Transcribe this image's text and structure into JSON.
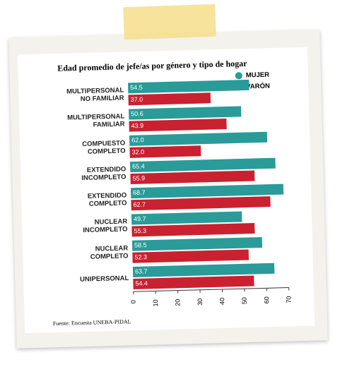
{
  "chart_data": {
    "type": "bar",
    "orientation": "horizontal",
    "title": "Edad promedio de jefe/as por género y tipo de hogar",
    "categories": [
      "MULTIPERSONAL\nNO FAMILIAR",
      "MULTIPERSONAL\nFAMILIAR",
      "COMPUESTO\nCOMPLETO",
      "EXTENDIDO\nINCOMPLETO",
      "EXTENDIDO\nCOMPLETO",
      "NUCLEAR\nINCOMPLETO",
      "NUCLEAR\nCOMPLETO",
      "UNIPERSONAL"
    ],
    "series": [
      {
        "name": "MUJER",
        "color": "#2a9b98",
        "values": [
          54.5,
          50.6,
          62.0,
          65.4,
          68.7,
          49.7,
          58.5,
          63.7
        ],
        "value_labels": [
          "54.5",
          "50.6",
          "62.0",
          "65.4",
          "68.7",
          "49.7",
          "58.5",
          "63.7"
        ]
      },
      {
        "name": "VARÓN",
        "color": "#c92130",
        "values": [
          37.0,
          43.9,
          32.0,
          55.9,
          62.7,
          55.3,
          52.3,
          54.4
        ],
        "value_labels": [
          "37.0",
          "43.9",
          "32.0",
          "55.9",
          "62.7",
          "55.3",
          "52.3",
          "54.4"
        ]
      }
    ],
    "xlim": [
      0,
      70
    ],
    "xticks": [
      0,
      10,
      20,
      30,
      40,
      50,
      60,
      70
    ],
    "legend": "top-right",
    "source": "Fuente: Encuesta UNEBA-PIDAL"
  }
}
